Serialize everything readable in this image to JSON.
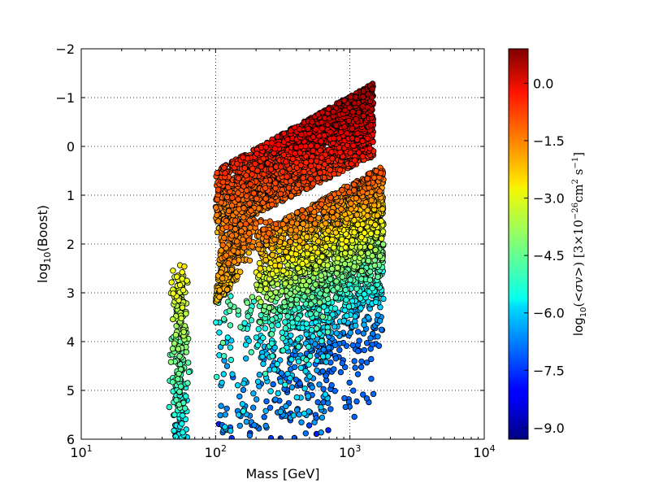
{
  "chart_data": {
    "type": "scatter",
    "title": "",
    "xlabel": "Mass [GeV]",
    "ylabel_main": "log",
    "ylabel_sub": "10",
    "ylabel_rest": "(Boost)",
    "x_scale": "log",
    "xlim": [
      10,
      10000
    ],
    "ylim": [
      6,
      -2
    ],
    "y_inverted": true,
    "grid": true,
    "x_ticks": [
      {
        "value": 10,
        "base": "10",
        "exp": "1"
      },
      {
        "value": 100,
        "base": "10",
        "exp": "2"
      },
      {
        "value": 1000,
        "base": "10",
        "exp": "3"
      },
      {
        "value": 10000,
        "base": "10",
        "exp": "4"
      }
    ],
    "y_ticks": [
      {
        "value": -2,
        "label": "−2"
      },
      {
        "value": -1,
        "label": "−1"
      },
      {
        "value": 0,
        "label": "0"
      },
      {
        "value": 1,
        "label": "1"
      },
      {
        "value": 2,
        "label": "2"
      },
      {
        "value": 3,
        "label": "3"
      },
      {
        "value": 4,
        "label": "4"
      },
      {
        "value": 5,
        "label": "5"
      },
      {
        "value": 6,
        "label": "6"
      }
    ],
    "colorbar": {
      "label": "log10(<σv>) [3×10−26 cm2 s−1]",
      "range": [
        -9.3,
        0.9
      ],
      "colormap": "jet",
      "ticks": [
        {
          "value": 0.0,
          "label": "0.0"
        },
        {
          "value": -1.5,
          "label": "−1.5"
        },
        {
          "value": -3.0,
          "label": "−3.0"
        },
        {
          "value": -4.5,
          "label": "−4.5"
        },
        {
          "value": -6.0,
          "label": "−6.0"
        },
        {
          "value": -7.5,
          "label": "−7.5"
        },
        {
          "value": -9.0,
          "label": "−9.0"
        }
      ]
    },
    "point_regions": [
      {
        "region": "upper-band",
        "x_range": [
          100,
          1500
        ],
        "y_top_at_100": 0.5,
        "y_top_at_1500": -1.3,
        "y_bottom_at_100": 1.8,
        "y_bottom_at_1500": 0.2,
        "color_value_range": [
          -2.5,
          0.6
        ],
        "count": 2600
      },
      {
        "region": "funnel",
        "x_range": [
          100,
          300
        ],
        "y_range": [
          1.5,
          3.2
        ],
        "color_value_range": [
          -2.5,
          -1.2
        ],
        "count": 350
      },
      {
        "region": "main-body",
        "x_range": [
          200,
          1800
        ],
        "y_range": [
          1.0,
          5.5
        ],
        "color_value_range": [
          -6.5,
          -1.5
        ],
        "count": 2400
      },
      {
        "region": "sparse-lower",
        "x_range": [
          100,
          700
        ],
        "y_range": [
          3.0,
          6.0
        ],
        "color_value_range": [
          -7.5,
          -4.5
        ],
        "count": 260
      },
      {
        "region": "low-mass-strip",
        "x_range": [
          45,
          65
        ],
        "y_range": [
          2.4,
          6.0
        ],
        "color_value_range": [
          -6.0,
          -3.0
        ],
        "count": 240
      }
    ]
  }
}
